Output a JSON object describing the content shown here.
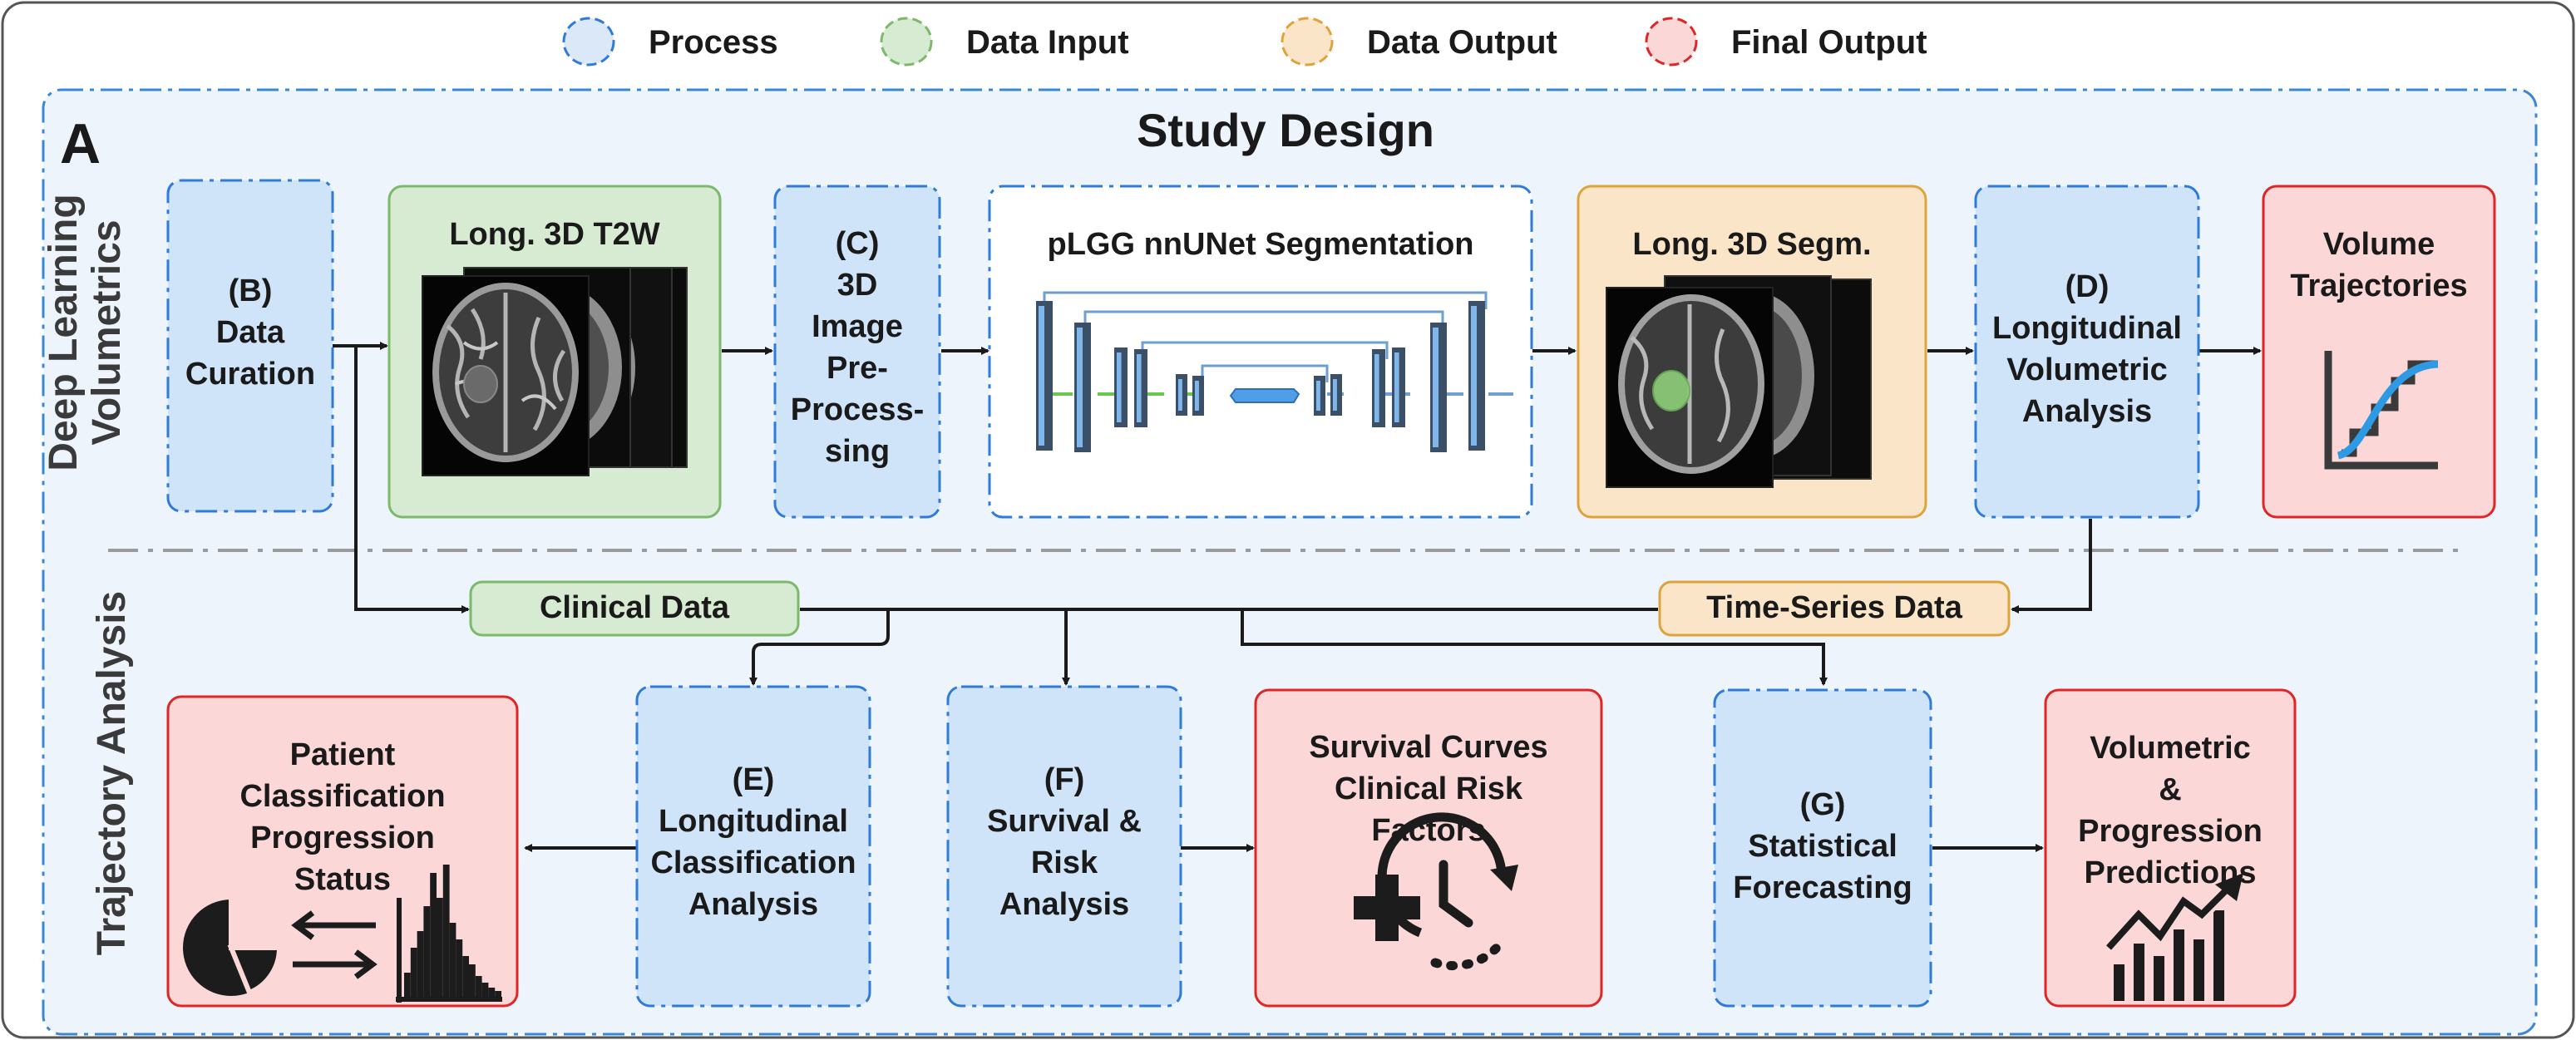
{
  "legend": [
    {
      "label": "Process",
      "fill": "#dbe8f8",
      "stroke": "#2f7bd8"
    },
    {
      "label": "Data Input",
      "fill": "#d7ead2",
      "stroke": "#7cb96a"
    },
    {
      "label": "Data Output",
      "fill": "#fbe5c8",
      "stroke": "#e0a33c"
    },
    {
      "label": "Final Output",
      "fill": "#fbd7d7",
      "stroke": "#e02525"
    }
  ],
  "panel": {
    "letter": "A",
    "title": "Study Design"
  },
  "side_labels": {
    "top": [
      "Deep Learning",
      "Volumetrics"
    ],
    "bottom": [
      "Trajectory Analysis"
    ]
  },
  "colors": {
    "process_fill": "#cfe3f9",
    "process_stroke": "#2f7bd8",
    "input_fill": "#d7ead2",
    "input_stroke": "#7cb96a",
    "output_fill": "#fbe5c8",
    "output_stroke": "#e0a33c",
    "final_fill": "#fbd7d7",
    "final_stroke": "#e02525",
    "panel_fill": "#edf4fc",
    "panel_stroke": "#3a87d6",
    "segmentation_box_fill": "#ffffff",
    "tumor_overlay": "#8fcf7a",
    "unet_block": "#3b4f66",
    "unet_block_accent": "#7fb7ea",
    "skip_line": "#6e9fd3",
    "arrow": "#1a1a1a",
    "separator": "#9a9a9a"
  },
  "nodes": {
    "data_curation": [
      "(B)",
      "Data",
      "Curation"
    ],
    "long_3d_t2w": [
      "Long. 3D T2W"
    ],
    "preprocessing": [
      "(C)",
      "3D",
      "Image",
      "Pre-",
      "Process-",
      "sing"
    ],
    "segmentation": [
      "pLGG nnUNet Segmentation"
    ],
    "long_3d_segm": [
      "Long. 3D Segm."
    ],
    "volumetric_analysis": [
      "(D)",
      "Longitudinal",
      "Volumetric",
      "Analysis"
    ],
    "volume_trajectories": [
      "Volume",
      "Trajectories"
    ],
    "clinical_data": [
      "Clinical Data"
    ],
    "time_series_data": [
      "Time-Series Data"
    ],
    "patient_classification": [
      "Patient",
      "Classification",
      "Progression",
      "Status"
    ],
    "classification_analysis": [
      "(E)",
      "Longitudinal",
      "Classification",
      "Analysis"
    ],
    "survival_risk": [
      "(F)",
      "Survival &",
      "Risk",
      "Analysis"
    ],
    "survival_curves": [
      "Survival Curves",
      "Clinical Risk",
      "Factors"
    ],
    "statistical_forecasting": [
      "(G)",
      "Statistical",
      "Forecasting"
    ],
    "progression_predictions": [
      "Volumetric",
      "&",
      "Progression",
      "Predictions"
    ]
  },
  "icons": {
    "mri_stack": "mri-slice-stack-icon",
    "segmentation_stack": "segmented-mri-stack-icon",
    "unet": "unet-architecture-icon",
    "trajectory_curve": "volume-trajectory-curve-icon",
    "pie_chart": "pie-chart-icon",
    "swap_arrows": "swap-arrows-icon",
    "histogram": "histogram-icon",
    "clinical_risk": "medical-cross-clock-icon",
    "growth_chart": "growth-trend-chart-icon"
  }
}
